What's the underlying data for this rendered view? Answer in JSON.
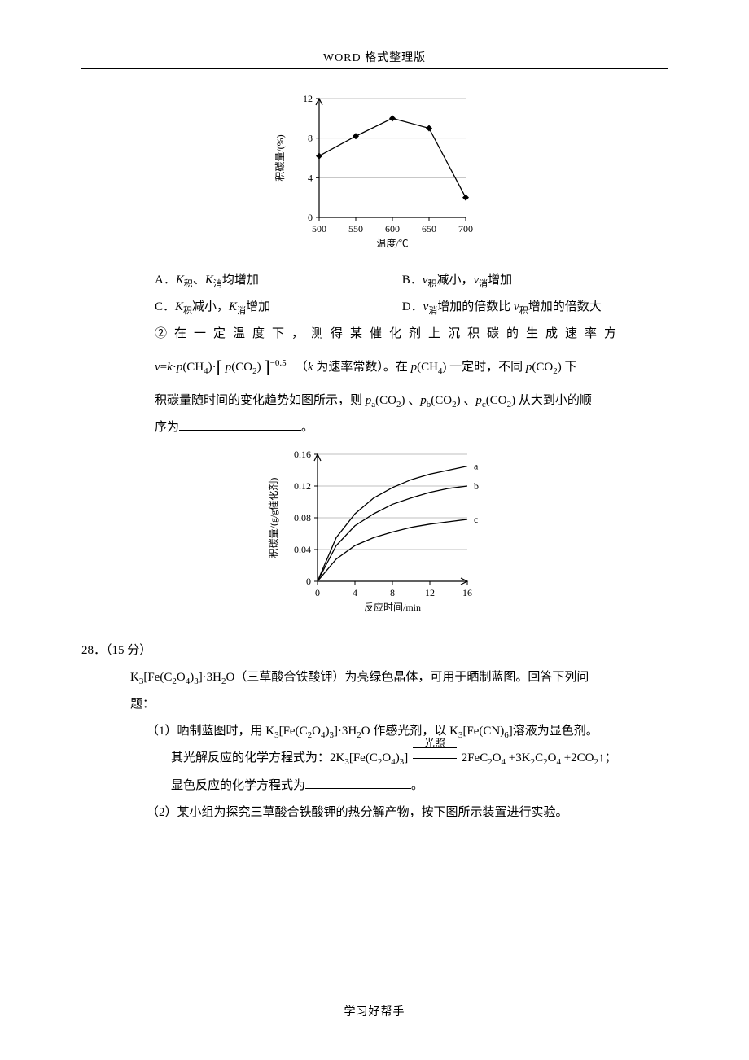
{
  "header": {
    "text": "WORD 格式整理版"
  },
  "chart1": {
    "type": "line",
    "ylabel": "积碳量/(%)",
    "xlabel": "温度/℃",
    "ylim": [
      0,
      12
    ],
    "ytick_step": 4,
    "xlim": [
      500,
      700
    ],
    "xtick_step": 50,
    "x": [
      500,
      550,
      600,
      650,
      700
    ],
    "y": [
      6.2,
      8.2,
      10.0,
      9.0,
      2.0
    ],
    "marker": "diamond",
    "marker_color": "#000000",
    "line_color": "#000000",
    "grid_color": "#bfbfbf",
    "background": "#ffffff",
    "label_fontsize": 12
  },
  "options": {
    "A": "A．K积、K消均增加",
    "B": "B．v积减小，v消增加",
    "C": "C．K积减小，K消增加",
    "D": "D．v消增加的倍数比 v积增加的倍数大"
  },
  "para2_pre": "② 在 一 定 温 度 下 ， 测 得 某 催 化 剂 上 沉 积 碳 的 生 成 速 率 方",
  "formula": {
    "lead": "v=k·p(CH4)·",
    "bracket": "[ p(CO2) ]",
    "exp": "−0.5",
    "tail1": "（k 为速率常数）。在 p(CH4) 一定时，不同 p(CO2) 下"
  },
  "para2_cont": "积碳量随时间的变化趋势如图所示，则 pa(CO2) 、pb(CO2) 、pc(CO2) 从大到小的顺",
  "para2_end": "序为",
  "period": "。",
  "chart2": {
    "type": "line",
    "ylabel": "积碳量/(g/g催化剂)",
    "xlabel": "反应时间/min",
    "ylim": [
      0,
      0.16
    ],
    "ytick_step": 0.04,
    "xlim": [
      0,
      16
    ],
    "xtick_step": 4,
    "series": [
      {
        "name": "a",
        "x": [
          0,
          2,
          4,
          6,
          8,
          10,
          12,
          14,
          16
        ],
        "y": [
          0,
          0.055,
          0.085,
          0.105,
          0.118,
          0.128,
          0.135,
          0.14,
          0.145
        ],
        "color": "#000000"
      },
      {
        "name": "b",
        "x": [
          0,
          2,
          4,
          6,
          8,
          10,
          12,
          14,
          16
        ],
        "y": [
          0,
          0.045,
          0.07,
          0.085,
          0.097,
          0.105,
          0.112,
          0.117,
          0.12
        ],
        "color": "#000000"
      },
      {
        "name": "c",
        "x": [
          0,
          2,
          4,
          6,
          8,
          10,
          12,
          14,
          16
        ],
        "y": [
          0,
          0.028,
          0.045,
          0.055,
          0.062,
          0.068,
          0.072,
          0.075,
          0.078
        ],
        "color": "#000000"
      }
    ],
    "grid_color": "#bfbfbf",
    "background": "#ffffff",
    "label_fontsize": 12
  },
  "q28": {
    "num": "28．（15 分）",
    "intro1": "K3[Fe(C2O4)3]·3H2O（三草酸合铁酸钾）为亮绿色晶体，可用于晒制蓝图。回答下列问",
    "intro2": "题：",
    "p1a": "（1）晒制蓝图时，用 K3[Fe(C2O4)3]·3H2O 作感光剂，以 K3[Fe(CN)6]溶液为显色剂。",
    "p1b_pre": "其光解反应的化学方程式为：2K3[Fe(C2O4)3]",
    "p1b_over": "光照",
    "p1b_post": "2FeC2O4 +3K2C2O4 +2CO2↑；",
    "p1c_pre": "显色反应的化学方程式为",
    "p2": "（2）某小组为探究三草酸合铁酸钾的热分解产物，按下图所示装置进行实验。"
  },
  "footer": {
    "text": "学习好帮手"
  }
}
